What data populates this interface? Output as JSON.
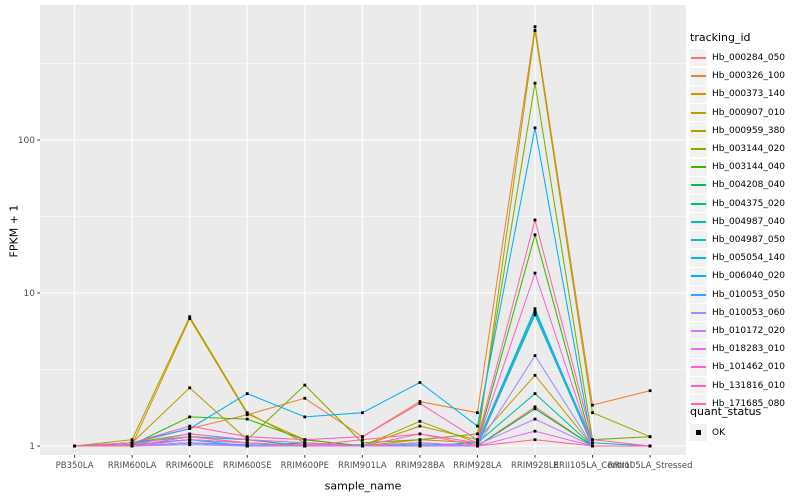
{
  "chart_data": {
    "type": "line",
    "title": "",
    "xlabel": "sample_name",
    "ylabel": "FPKM + 1",
    "y_scale": "log10",
    "grid": true,
    "panel_bg": "#EBEBEB",
    "grid_color": "#FFFFFF",
    "tick_color": "#333333",
    "tick_label_color": "#4D4D4D",
    "point_color": "#000000",
    "point_shape": "square",
    "y_ticks": [
      "1",
      "10",
      "100"
    ],
    "y_tick_values": [
      1,
      10,
      100
    ],
    "y_minor_values": [
      3.162,
      31.62,
      316.2
    ],
    "ylim": [
      0.87,
      760
    ],
    "categories": [
      "PB350LA",
      "RRIM600LA",
      "RRIM600LE",
      "RRIM600SE",
      "RRIM600PE",
      "RRIM901LA",
      "RRIM928BA",
      "RRIM928LA",
      "RRIM928LE",
      "RRII105LA_Control",
      "RRII105LA_Stressed"
    ],
    "legend": {
      "color_title": "tracking_id",
      "shape_title": "quant_status",
      "shape_entries": [
        {
          "label": "OK"
        }
      ]
    },
    "series": [
      {
        "name": "Hb_000284_050",
        "color": "#F8766D",
        "values": [
          1,
          1,
          1.05,
          1,
          1,
          1,
          1,
          1,
          1.8,
          1,
          1
        ]
      },
      {
        "name": "Hb_000326_100",
        "color": "#EA8331",
        "values": [
          1,
          1.05,
          1.3,
          1.6,
          2.05,
          1.15,
          1.95,
          1.65,
          550,
          1.85,
          2.3
        ]
      },
      {
        "name": "Hb_000373_140",
        "color": "#D89000",
        "values": [
          1,
          1.02,
          6.8,
          1.62,
          1.1,
          1,
          1.1,
          1.05,
          7.5,
          1,
          1
        ]
      },
      {
        "name": "Hb_000907_010",
        "color": "#C09B00",
        "values": [
          1,
          1.05,
          2.4,
          1.1,
          1,
          1,
          1.35,
          1.1,
          2.9,
          1,
          1
        ]
      },
      {
        "name": "Hb_000959_380",
        "color": "#A3A500",
        "values": [
          1,
          1.1,
          7.0,
          1.65,
          1.05,
          1,
          1.45,
          1.05,
          520,
          1.65,
          1.15
        ]
      },
      {
        "name": "Hb_003144_020",
        "color": "#7CAE00",
        "values": [
          1,
          1.05,
          1.2,
          1.1,
          2.5,
          1.05,
          1.1,
          1.2,
          235,
          1.1,
          1.15
        ]
      },
      {
        "name": "Hb_003144_040",
        "color": "#39B600",
        "values": [
          1,
          1.02,
          1.55,
          1.5,
          1.1,
          1,
          1,
          1.05,
          24,
          1,
          1
        ]
      },
      {
        "name": "Hb_004208_040",
        "color": "#00BB4E",
        "values": [
          1,
          1,
          1.05,
          1,
          1.05,
          1,
          1,
          1,
          1.75,
          1,
          1
        ]
      },
      {
        "name": "Hb_004375_020",
        "color": "#00BF7D",
        "values": [
          1,
          1.02,
          1.1,
          1.05,
          1,
          1,
          1.05,
          1,
          7.2,
          1,
          1
        ]
      },
      {
        "name": "Hb_004987_040",
        "color": "#00C1A3",
        "values": [
          1,
          1,
          1.05,
          1,
          1,
          1.02,
          1,
          1.05,
          2.2,
          1,
          1
        ]
      },
      {
        "name": "Hb_004987_050",
        "color": "#00BFC4",
        "values": [
          1,
          1.05,
          1.15,
          1.1,
          1,
          1,
          1.05,
          1,
          7.6,
          1.05,
          1
        ]
      },
      {
        "name": "Hb_005054_140",
        "color": "#00BAE0",
        "values": [
          1,
          1.02,
          1.1,
          1,
          1.02,
          1,
          1,
          1.05,
          7.9,
          1,
          1
        ]
      },
      {
        "name": "Hb_006040_020",
        "color": "#00B0F6",
        "values": [
          1,
          1.05,
          1.3,
          2.2,
          1.55,
          1.65,
          2.6,
          1.35,
          120,
          1,
          1
        ]
      },
      {
        "name": "Hb_010053_050",
        "color": "#35A2FF",
        "values": [
          1,
          1,
          1.05,
          1.02,
          1,
          1,
          1.02,
          1,
          7.4,
          1,
          1
        ]
      },
      {
        "name": "Hb_010053_060",
        "color": "#9590FF",
        "values": [
          1,
          1,
          1.02,
          1,
          1,
          1,
          1,
          1,
          3.9,
          1,
          1
        ]
      },
      {
        "name": "Hb_010172_020",
        "color": "#C77CFF",
        "values": [
          1,
          1,
          1.05,
          1,
          1.02,
          1,
          1,
          1.02,
          1.5,
          1,
          1
        ]
      },
      {
        "name": "Hb_018283_010",
        "color": "#E76BF3",
        "values": [
          1,
          1,
          1.1,
          1.05,
          1,
          1,
          1.05,
          1,
          1.25,
          1,
          1
        ]
      },
      {
        "name": "Hb_101462_010",
        "color": "#FA62DB",
        "values": [
          1,
          1.02,
          1.2,
          1.1,
          1.05,
          1,
          1.2,
          1.05,
          13.5,
          1,
          1
        ]
      },
      {
        "name": "Hb_131816_010",
        "color": "#FF62BC",
        "values": [
          1,
          1.05,
          1.35,
          1.15,
          1.1,
          1.15,
          1.9,
          1.1,
          30,
          1.1,
          1
        ]
      },
      {
        "name": "Hb_171685_080",
        "color": "#FF6A98",
        "values": [
          1,
          1,
          1.15,
          1.05,
          1,
          1.1,
          1.2,
          1,
          1.1,
          1,
          1
        ]
      }
    ]
  }
}
